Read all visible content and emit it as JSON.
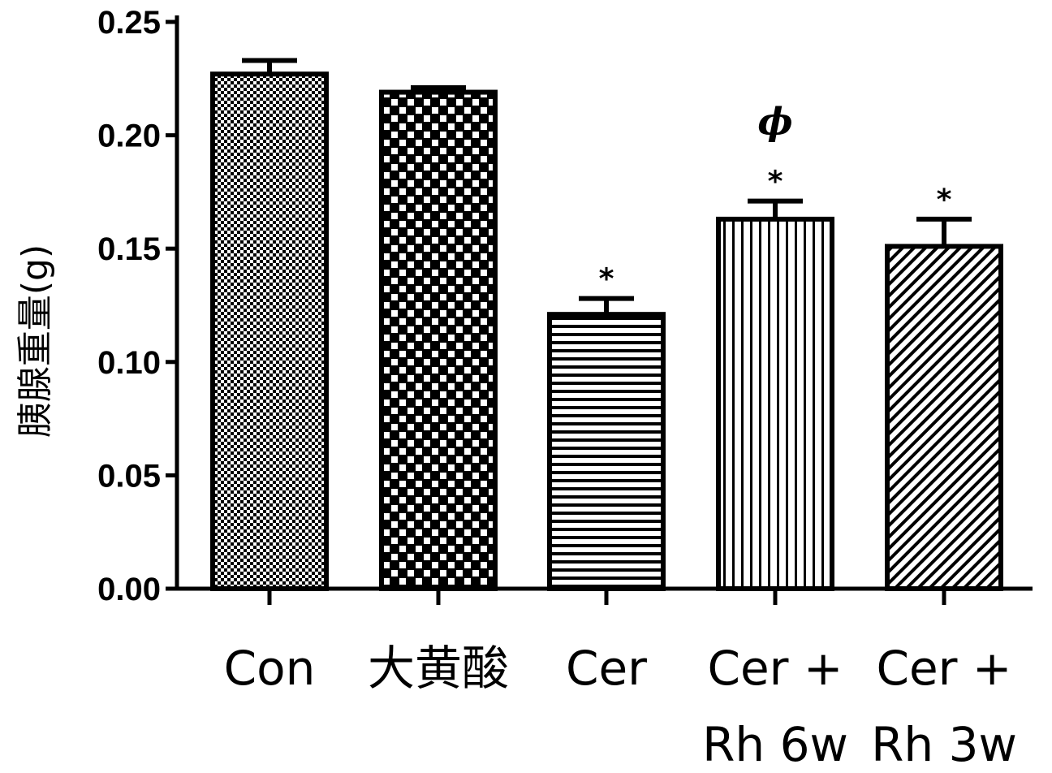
{
  "chart_data": {
    "type": "bar",
    "title": "",
    "xlabel": "",
    "ylabel": "胰腺重量(g)",
    "ylim": [
      0,
      0.25
    ],
    "yticks": [
      "0.00",
      "0.05",
      "0.10",
      "0.15",
      "0.20",
      "0.25"
    ],
    "grid": false,
    "legend": "none",
    "categories": [
      [
        "Con"
      ],
      [
        "大黄酸"
      ],
      [
        "Cer"
      ],
      [
        "Cer +",
        "Rh 6w"
      ],
      [
        "Cer +",
        "Rh 3w"
      ]
    ],
    "values": [
      0.227,
      0.219,
      0.121,
      0.163,
      0.151
    ],
    "errors": [
      0.006,
      0.002,
      0.007,
      0.008,
      0.012
    ],
    "fill_patterns": [
      "fine-dots",
      "checker",
      "horizontal-lines",
      "vertical-lines",
      "diagonal-lines"
    ],
    "annotations": [
      {
        "bar": 2,
        "marks": [
          "*"
        ]
      },
      {
        "bar": 3,
        "marks": [
          "*",
          "ϕ"
        ]
      },
      {
        "bar": 4,
        "marks": [
          "*"
        ]
      }
    ],
    "colors": {
      "ink": "#000000",
      "background": "#ffffff"
    }
  }
}
